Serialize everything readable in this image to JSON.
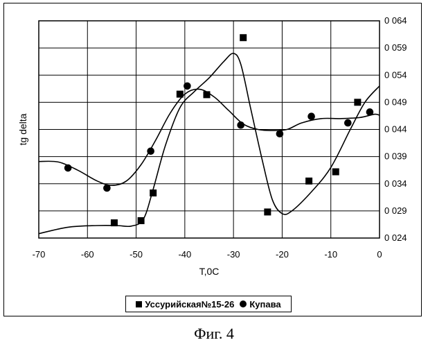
{
  "chart_data": {
    "type": "scatter",
    "title": "",
    "xlabel": "T,0C",
    "ylabel": "tg delta",
    "xlim": [
      -70,
      0
    ],
    "ylim": [
      0.024,
      0.064
    ],
    "grid": true,
    "x_ticks": [
      "-70",
      "-60",
      "-50",
      "-40",
      "-30",
      "-20",
      "-10",
      "0"
    ],
    "y_ticks": [
      "0 024",
      "0 029",
      "0 034",
      "0 039",
      "0 044",
      "0 049",
      "0 054",
      "0 059",
      "0 064"
    ],
    "legend": "bottom-center",
    "series": [
      {
        "name": "Уссурийская№15-26",
        "marker": "square",
        "points": [
          [
            -54.5,
            0.0268
          ],
          [
            -49,
            0.0272
          ],
          [
            -46.5,
            0.0323
          ],
          [
            -41,
            0.0505
          ],
          [
            -35.5,
            0.0504
          ],
          [
            -28,
            0.0609
          ],
          [
            -23,
            0.0288
          ],
          [
            -14.5,
            0.0345
          ],
          [
            -9,
            0.0362
          ],
          [
            -4.5,
            0.049
          ]
        ],
        "curve": [
          [
            -70,
            0.0248
          ],
          [
            -64,
            0.026
          ],
          [
            -58,
            0.0263
          ],
          [
            -54,
            0.0263
          ],
          [
            -51,
            0.0262
          ],
          [
            -48.5,
            0.0275
          ],
          [
            -46.5,
            0.033
          ],
          [
            -44,
            0.041
          ],
          [
            -41,
            0.048
          ],
          [
            -38,
            0.051
          ],
          [
            -35,
            0.0535
          ],
          [
            -32,
            0.0565
          ],
          [
            -30,
            0.058
          ],
          [
            -28.5,
            0.056
          ],
          [
            -26.5,
            0.048
          ],
          [
            -24,
            0.038
          ],
          [
            -22,
            0.031
          ],
          [
            -20,
            0.0285
          ],
          [
            -18,
            0.029
          ],
          [
            -14,
            0.0325
          ],
          [
            -10,
            0.037
          ],
          [
            -6,
            0.044
          ],
          [
            -3,
            0.049
          ],
          [
            0,
            0.052
          ]
        ]
      },
      {
        "name": "Купава",
        "marker": "circle",
        "points": [
          [
            -64,
            0.0369
          ],
          [
            -56,
            0.0332
          ],
          [
            -47,
            0.04
          ],
          [
            -39.5,
            0.052
          ],
          [
            -28.5,
            0.0448
          ],
          [
            -20.5,
            0.0432
          ],
          [
            -14,
            0.0464
          ],
          [
            -6.5,
            0.0452
          ],
          [
            -2,
            0.0472
          ]
        ],
        "curve": [
          [
            -70,
            0.0381
          ],
          [
            -66,
            0.038
          ],
          [
            -62,
            0.0365
          ],
          [
            -58,
            0.0345
          ],
          [
            -55,
            0.0337
          ],
          [
            -52,
            0.0345
          ],
          [
            -49,
            0.0375
          ],
          [
            -46,
            0.042
          ],
          [
            -43,
            0.047
          ],
          [
            -40,
            0.0505
          ],
          [
            -37,
            0.0514
          ],
          [
            -34,
            0.05
          ],
          [
            -31,
            0.0475
          ],
          [
            -28,
            0.045
          ],
          [
            -25,
            0.044
          ],
          [
            -22,
            0.0438
          ],
          [
            -19,
            0.044
          ],
          [
            -16,
            0.0452
          ],
          [
            -12,
            0.046
          ],
          [
            -8,
            0.046
          ],
          [
            -4,
            0.0462
          ],
          [
            -1,
            0.0468
          ],
          [
            0,
            0.0466
          ]
        ]
      }
    ]
  },
  "legend": {
    "items": [
      "Уссурийская№15-26",
      "Купава"
    ]
  },
  "caption": "Фиг. 4"
}
